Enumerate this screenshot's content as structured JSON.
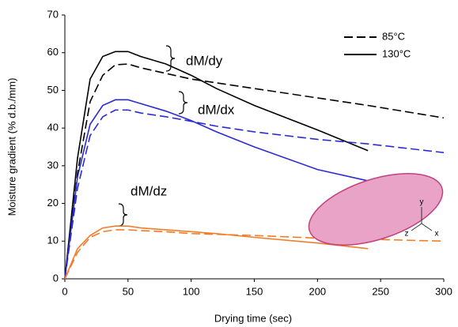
{
  "chart_data": {
    "type": "line",
    "xlabel": "Drying time (sec)",
    "ylabel": "Moisture gradient (% d.b./mm)",
    "xlim": [
      0,
      300
    ],
    "xticks": [
      0,
      50,
      100,
      150,
      200,
      250,
      300
    ],
    "ylim": [
      0,
      70
    ],
    "yticks": [
      0,
      10,
      20,
      30,
      40,
      50,
      60,
      70
    ],
    "legend": [
      {
        "name": "85°C",
        "dash": "dashed"
      },
      {
        "name": "130°C",
        "dash": "solid"
      }
    ],
    "annotations": [
      "dM/dy",
      "dM/dx",
      "dM/dz"
    ],
    "inset_labels": [
      "y",
      "z",
      "x"
    ],
    "series": [
      {
        "color": "#000000",
        "dash": "dashed",
        "x": [
          0,
          10,
          20,
          30,
          40,
          50,
          60,
          80,
          100,
          120,
          150,
          200,
          240,
          300
        ],
        "values": [
          0,
          28,
          47,
          54,
          56.8,
          57,
          56,
          54.5,
          53,
          52,
          50.5,
          48,
          46,
          42.7
        ]
      },
      {
        "color": "#000000",
        "dash": "solid",
        "x": [
          0,
          10,
          20,
          30,
          40,
          50,
          60,
          80,
          100,
          120,
          150,
          200,
          240
        ],
        "values": [
          0,
          32,
          53,
          59,
          60.3,
          60.3,
          59,
          57,
          54,
          50.5,
          46,
          39.5,
          34
        ]
      },
      {
        "color": "#2b2bd4",
        "dash": "dashed",
        "x": [
          0,
          10,
          20,
          30,
          40,
          50,
          60,
          80,
          100,
          120,
          150,
          200,
          240,
          300
        ],
        "values": [
          0,
          24,
          38,
          43,
          44.8,
          44.8,
          44,
          43,
          41.8,
          40.5,
          39,
          37,
          35.8,
          33.5
        ]
      },
      {
        "color": "#2b2bd4",
        "dash": "solid",
        "x": [
          0,
          10,
          20,
          30,
          40,
          50,
          60,
          80,
          100,
          120,
          150,
          200,
          240
        ],
        "values": [
          0,
          27,
          41,
          46,
          47.5,
          47.5,
          46.5,
          44.5,
          42,
          39,
          35,
          29,
          26
        ]
      },
      {
        "color": "#f07d2a",
        "dash": "dashed",
        "x": [
          0,
          10,
          20,
          30,
          40,
          50,
          60,
          80,
          100,
          120,
          150,
          200,
          240,
          300
        ],
        "values": [
          0,
          7,
          11,
          12.5,
          13,
          13,
          12.8,
          12.5,
          12,
          11.8,
          11.5,
          10.8,
          10.5,
          10
        ]
      },
      {
        "color": "#f07d2a",
        "dash": "solid",
        "x": [
          0,
          10,
          20,
          30,
          40,
          50,
          60,
          80,
          100,
          120,
          150,
          200,
          240
        ],
        "values": [
          0,
          8,
          11.5,
          13.5,
          14,
          14,
          13.5,
          13,
          12.5,
          12,
          11,
          9.5,
          8
        ]
      }
    ]
  }
}
